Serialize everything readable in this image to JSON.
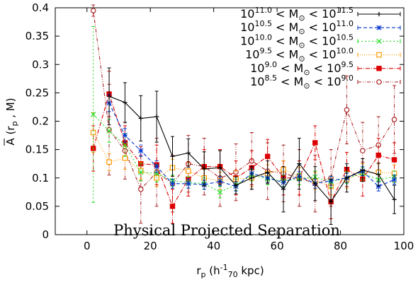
{
  "chart_data": {
    "type": "line",
    "xlabel": {
      "main": "r",
      "sub": "p",
      "open": " (h",
      "sup": "-1",
      "sub2": "70",
      "close": " kpc)"
    },
    "ylabel": {
      "main": "A",
      "rest": " (r",
      "sub": "p",
      "close": " , M)"
    },
    "annotation": "Physical Projected Separation",
    "xlim": [
      -10,
      100
    ],
    "ylim": [
      0,
      0.4
    ],
    "x_ticks": [
      0,
      20,
      40,
      60,
      80,
      100
    ],
    "y_ticks": [
      0,
      0.05,
      0.1,
      0.15,
      0.2,
      0.25,
      0.3,
      0.35,
      0.4
    ],
    "y_tick_labels": [
      "0",
      "0.05",
      "0.1",
      "0.15",
      "0.2",
      "0.25",
      "0.3",
      "0.35",
      "0.4"
    ],
    "legend_position": "top-right",
    "grid": false,
    "x": [
      2,
      7,
      12,
      17,
      22,
      27,
      32,
      37,
      42,
      47,
      52,
      57,
      62,
      67,
      72,
      77,
      82,
      87,
      92,
      97
    ],
    "series": [
      {
        "label": {
          "base": "10",
          "e1": "11.0",
          "mid": " < M",
          "sub": "⊙",
          "lt": " < 10",
          "e2": "11.5"
        },
        "color": "#000000",
        "dash": "",
        "marker": "plus",
        "y": [
          null,
          0.244,
          0.233,
          0.205,
          0.208,
          0.138,
          0.144,
          0.116,
          0.118,
          0.087,
          0.1,
          0.11,
          0.08,
          0.125,
          0.09,
          0.058,
          0.1,
          0.114,
          0.106,
          0.062
        ],
        "err": [
          null,
          0.05,
          0.035,
          0.04,
          0.045,
          0.035,
          0.025,
          0.03,
          0.03,
          0.015,
          0.02,
          0.02,
          0.04,
          0.045,
          0.03,
          0.04,
          0.025,
          0.02,
          0.02,
          0.025
        ]
      },
      {
        "label": {
          "base": "10",
          "e1": "10.5",
          "mid": " < M",
          "sub": "⊙",
          "lt": " < 10",
          "e2": "11.0"
        },
        "color": "#0033cc",
        "dash": "5,3",
        "marker": "star",
        "y": [
          null,
          0.232,
          0.175,
          0.148,
          0.12,
          0.09,
          0.09,
          0.088,
          0.094,
          0.085,
          0.108,
          0.1,
          0.092,
          0.103,
          0.09,
          0.095,
          0.1,
          0.112,
          0.085,
          0.097
        ],
        "err": [
          null,
          0.015,
          0.012,
          0.01,
          0.01,
          0.008,
          0.008,
          0.008,
          0.008,
          0.008,
          0.008,
          0.008,
          0.008,
          0.008,
          0.008,
          0.008,
          0.008,
          0.008,
          0.008,
          0.008
        ]
      },
      {
        "label": {
          "base": "10",
          "e1": "10.0",
          "mid": " < M",
          "sub": "⊙",
          "lt": " < 10",
          "e2": "10.5"
        },
        "color": "#22dd22",
        "dash": "2,3",
        "marker": "x",
        "y": [
          0.212,
          0.183,
          0.158,
          0.11,
          0.108,
          0.095,
          0.092,
          0.09,
          0.075,
          0.088,
          0.105,
          0.098,
          0.095,
          0.098,
          0.102,
          0.093,
          0.1,
          0.108,
          0.097,
          0.102
        ],
        "err": [
          0.155,
          0.02,
          0.02,
          0.015,
          0.015,
          0.01,
          0.01,
          0.01,
          0.01,
          0.01,
          0.01,
          0.01,
          0.01,
          0.01,
          0.01,
          0.01,
          0.01,
          0.01,
          0.01,
          0.01
        ]
      },
      {
        "label": {
          "base": "10",
          "e1": "9.5",
          "mid": " < M",
          "sub": "⊙",
          "lt": " < 10",
          "e2": "10.0"
        },
        "color": "#ff9900",
        "dash": "1,2",
        "marker": "square-open",
        "y": [
          0.18,
          0.128,
          0.135,
          0.113,
          0.1,
          0.118,
          0.112,
          0.1,
          0.095,
          0.098,
          0.1,
          0.108,
          0.115,
          0.103,
          0.095,
          0.085,
          0.097,
          0.11,
          0.11,
          0.108
        ],
        "err": [
          0.035,
          0.015,
          0.02,
          0.015,
          0.015,
          0.015,
          0.015,
          0.015,
          0.015,
          0.015,
          0.015,
          0.015,
          0.015,
          0.015,
          0.015,
          0.015,
          0.015,
          0.015,
          0.015,
          0.015
        ]
      },
      {
        "label": {
          "base": "10",
          "e1": "9.0",
          "mid": " < M",
          "sub": "⊙",
          "lt": " < 10",
          "e2": "9.5"
        },
        "color": "#dd0000",
        "dash": "6,2,1,2",
        "marker": "square-filled",
        "y": [
          0.152,
          0.248,
          0.162,
          0.125,
          0.123,
          0.05,
          0.098,
          0.12,
          0.12,
          0.1,
          0.118,
          0.138,
          0.1,
          0.1,
          0.162,
          0.058,
          0.115,
          0.098,
          0.14,
          0.132
        ],
        "err": [
          0.04,
          0.04,
          0.03,
          0.03,
          0.035,
          0.03,
          0.03,
          0.03,
          0.03,
          0.03,
          0.03,
          0.03,
          0.03,
          0.03,
          0.03,
          0.03,
          0.03,
          0.03,
          0.03,
          0.03
        ]
      },
      {
        "label": {
          "base": "10",
          "e1": "8.5",
          "mid": " < M",
          "sub": "⊙",
          "lt": " < 10",
          "e2": "9.0"
        },
        "color": "#aa2222",
        "dash": "5,2,1,2,1,2",
        "marker": "circle-open",
        "y": [
          0.395,
          0.185,
          0.148,
          0.08,
          0.11,
          0.09,
          0.125,
          0.12,
          0.1,
          0.11,
          0.13,
          0.112,
          0.108,
          0.1,
          0.09,
          0.1,
          0.22,
          0.148,
          0.158,
          0.203
        ],
        "err": [
          0.01,
          0.08,
          0.05,
          0.06,
          0.06,
          0.05,
          0.05,
          0.05,
          0.05,
          0.05,
          0.05,
          0.05,
          0.05,
          0.05,
          0.05,
          0.05,
          0.06,
          0.05,
          0.05,
          0.06
        ]
      }
    ]
  }
}
